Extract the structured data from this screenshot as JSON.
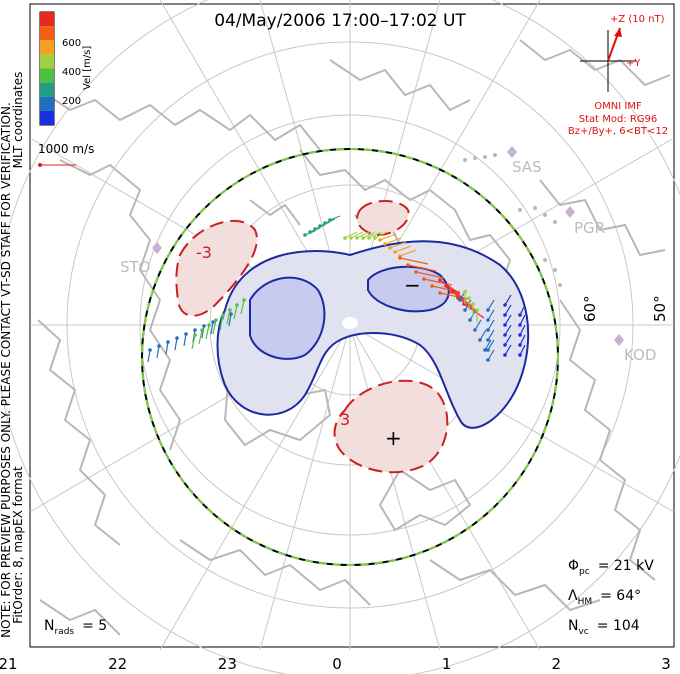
{
  "title": "04/May/2006 17:00–17:02 UT",
  "coord_label": "MLT coordinates",
  "colorbar": {
    "label": "Vel [m/s]",
    "ticks": [
      "600",
      "400",
      "200"
    ],
    "colors": [
      "#e8281e",
      "#f06010",
      "#f5a020",
      "#a0d040",
      "#50c040",
      "#20a080",
      "#2070c0",
      "#1a30e0"
    ]
  },
  "vector_scale": "1000 m/s",
  "imf": {
    "z_label": "+Z (10 nT)",
    "y_label": "+Y",
    "source": "OMNI IMF",
    "model_line1": "Stat Mod: RG96",
    "model_line2": "Bz+/By+, 6<BT<12"
  },
  "disclaimer": "NOTE: FOR PREVIEW PURPOSES ONLY. PLEASE CONTACT VT-SD STAFF FOR VERIFICATION.",
  "fit_order": "FitOrder: 8, mapEX format",
  "stats": {
    "phi_symbol": "Φ",
    "phi_sub": "pc",
    "phi_value": "= 21 kV",
    "lambda_symbol": "Λ",
    "lambda_sub": "HM",
    "lambda_value": "= 64°",
    "nvc_symbol": "N",
    "nvc_sub": "vc",
    "nvc_value": "= 104",
    "nrads_symbol": "N",
    "nrads_sub": "rads",
    "nrads_value": "= 5"
  },
  "mlt_axis": [
    "21",
    "22",
    "23",
    "0",
    "1",
    "2",
    "3"
  ],
  "lat_labels": [
    "60°",
    "50°"
  ],
  "radars": [
    "SAS",
    "PGR",
    "STO",
    "KOD"
  ],
  "contour_labels": [
    "-3",
    "3"
  ],
  "minimum_marker": "−",
  "maximum_marker": "+",
  "colors": {
    "positive_cell": "#cc2020",
    "negative_cell": "#1a2aa0",
    "boundary_green": "#7cd040",
    "grid": "#c8c8c8",
    "coast": "#b8b8b8",
    "annotation_red": "#e01010"
  }
}
